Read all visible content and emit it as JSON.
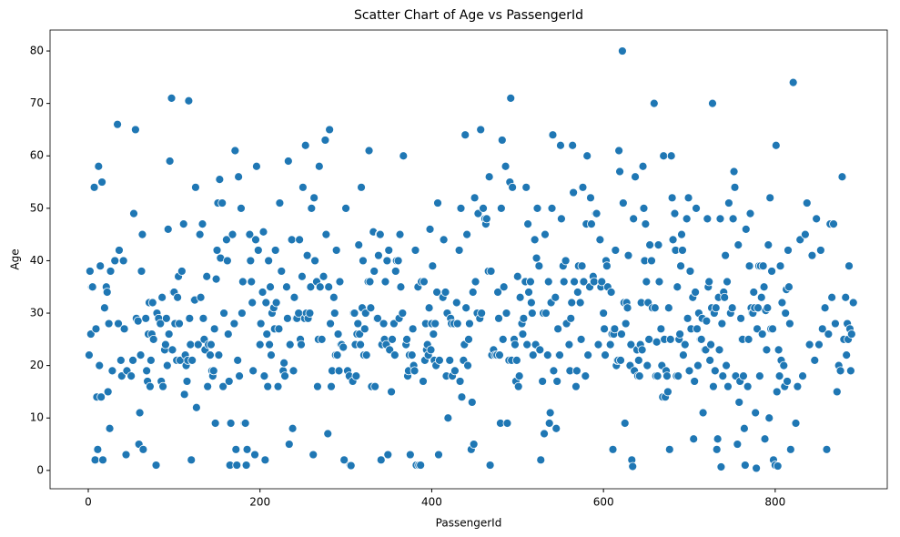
{
  "chart_data": {
    "type": "scatter",
    "title": "Scatter Chart of Age vs PassengerId",
    "xlabel": "PassengerId",
    "ylabel": "Age",
    "color": "#1f77b4",
    "x": [
      1,
      2,
      3,
      4,
      5,
      7,
      8,
      9,
      10,
      11,
      12,
      13,
      14,
      15,
      16,
      17,
      19,
      21,
      22,
      23,
      24,
      25,
      26,
      28,
      31,
      34,
      35,
      36,
      38,
      39,
      41,
      42,
      44,
      45,
      50,
      52,
      53,
      55,
      56,
      58,
      59,
      60,
      61,
      62,
      63,
      64,
      67,
      68,
      69,
      70,
      71,
      72,
      73,
      74,
      75,
      76,
      79,
      80,
      82,
      84,
      85,
      86,
      87,
      89,
      90,
      91,
      92,
      93,
      94,
      95,
      97,
      98,
      99,
      100,
      101,
      103,
      104,
      105,
      106,
      107,
      109,
      111,
      112,
      113,
      114,
      115,
      116,
      117,
      118,
      119,
      120,
      121,
      123,
      124,
      125,
      126,
      128,
      130,
      131,
      133,
      134,
      135,
      136,
      138,
      139,
      140,
      142,
      143,
      144,
      145,
      146,
      147,
      148,
      149,
      150,
      151,
      152,
      153,
      154,
      156,
      157,
      158,
      161,
      162,
      163,
      164,
      165,
      166,
      168,
      170,
      171,
      172,
      173,
      174,
      175,
      176,
      178,
      179,
      180,
      182,
      183,
      184,
      185,
      188,
      189,
      190,
      191,
      192,
      194,
      195,
      196,
      198,
      200,
      201,
      203,
      204,
      205,
      206,
      207,
      208,
      209,
      210,
      211,
      212,
      213,
      214,
      216,
      217,
      218,
      219,
      221,
      222,
      223,
      225,
      227,
      228,
      229,
      231,
      232,
      233,
      234,
      235,
      237,
      238,
      239,
      240,
      242,
      243,
      245,
      246,
      247,
      248,
      249,
      250,
      252,
      253,
      254,
      255,
      256,
      258,
      259,
      260,
      262,
      263,
      264,
      266,
      267,
      268,
      269,
      270,
      272,
      274,
      276,
      277,
      279,
      280,
      281,
      282,
      283,
      284,
      286,
      287,
      288,
      289,
      290,
      291,
      292,
      293,
      294,
      295,
      297,
      298,
      300,
      302,
      304,
      305,
      306,
      308,
      309,
      310,
      311,
      312,
      313,
      314,
      315,
      316,
      317,
      318,
      319,
      320,
      321,
      322,
      323,
      324,
      326,
      327,
      328,
      329,
      330,
      332,
      333,
      334,
      336,
      337,
      338,
      339,
      340,
      341,
      342,
      344,
      345,
      346,
      347,
      348,
      349,
      350,
      351,
      353,
      354,
      356,
      357,
      358,
      359,
      361,
      362,
      363,
      364,
      366,
      367,
      370,
      371,
      372,
      373,
      374,
      375,
      377,
      378,
      379,
      380,
      381,
      382,
      384,
      385,
      387,
      388,
      390,
      391,
      392,
      393,
      394,
      395,
      396,
      397,
      398,
      399,
      400,
      401,
      402,
      403,
      404,
      405,
      406,
      407,
      408,
      409,
      413,
      414,
      416,
      417,
      418,
      419,
      421,
      422,
      423,
      424,
      426,
      427,
      429,
      430,
      432,
      433,
      434,
      435,
      437,
      438,
      439,
      440,
      441,
      442,
      443,
      444,
      446,
      447,
      448,
      449,
      450,
      451,
      453,
      454,
      456,
      457,
      458,
      460,
      462,
      463,
      464,
      466,
      467,
      468,
      469,
      470,
      472,
      474,
      476,
      477,
      478,
      479,
      480,
      481,
      482,
      483,
      484,
      486,
      487,
      488,
      490,
      491,
      492,
      493,
      494,
      496,
      497,
      498,
      499,
      500,
      501,
      502,
      503,
      505,
      506,
      507,
      509,
      510,
      511,
      512,
      513,
      515,
      516,
      517,
      518,
      520,
      521,
      522,
      523,
      525,
      526,
      527,
      529,
      530,
      531,
      532,
      533,
      535,
      536,
      537,
      538,
      539,
      540,
      541,
      542,
      544,
      545,
      546,
      547,
      548,
      549,
      550,
      551,
      553,
      554,
      556,
      557,
      560,
      561,
      562,
      563,
      564,
      565,
      566,
      568,
      569,
      570,
      571,
      573,
      574,
      575,
      576,
      577,
      579,
      580,
      581,
      582,
      584,
      585,
      586,
      588,
      589,
      591,
      592,
      594,
      596,
      597,
      598,
      600,
      601,
      602,
      603,
      604,
      605,
      608,
      609,
      610,
      611,
      612,
      613,
      614,
      615,
      616,
      617,
      618,
      619,
      620,
      621,
      622,
      623,
      624,
      625,
      626,
      627,
      628,
      629,
      631,
      632,
      633,
      634,
      635,
      636,
      637,
      639,
      640,
      641,
      642,
      643,
      644,
      645,
      646,
      647,
      648,
      649,
      650,
      651,
      652,
      653,
      654,
      656,
      657,
      659,
      660,
      661,
      662,
      663,
      664,
      665,
      667,
      668,
      669,
      670,
      671,
      672,
      673,
      674,
      675,
      676,
      677,
      678,
      679,
      680,
      681,
      683,
      684,
      685,
      686,
      687,
      688,
      689,
      690,
      691,
      692,
      693,
      695,
      697,
      698,
      699,
      700,
      701,
      702,
      704,
      705,
      706,
      707,
      708,
      709,
      710,
      711,
      713,
      714,
      715,
      716,
      718,
      719,
      720,
      721,
      722,
      723,
      724,
      725,
      726,
      727,
      728,
      729,
      730,
      731,
      732,
      733,
      734,
      735,
      736,
      737,
      738,
      739,
      740,
      741,
      742,
      743,
      744,
      745,
      746,
      748,
      750,
      751,
      752,
      753,
      754,
      756,
      757,
      758,
      759,
      760,
      761,
      762,
      763,
      764,
      765,
      766,
      768,
      769,
      770,
      771,
      772,
      773,
      774,
      775,
      776,
      777,
      778,
      779,
      780,
      781,
      782,
      783,
      784,
      785,
      786,
      787,
      788,
      789,
      790,
      791,
      792,
      793,
      794,
      795,
      796,
      797,
      798,
      800,
      801,
      802,
      803,
      804,
      805,
      806,
      807,
      808,
      810,
      811,
      812,
      813,
      814,
      815,
      816,
      817,
      818,
      821,
      824,
      826,
      829,
      832,
      835,
      837,
      840,
      843,
      846,
      848,
      851,
      853,
      855,
      858,
      860,
      862,
      864,
      866,
      868,
      870,
      872,
      874,
      876,
      878,
      880,
      882,
      883,
      884,
      885,
      886,
      887,
      888,
      889,
      891
    ],
    "values": [
      22,
      38,
      26,
      35,
      35,
      54,
      2,
      27,
      14,
      4,
      58,
      20,
      39,
      14,
      55,
      2,
      31,
      35,
      34,
      15,
      28,
      8,
      38,
      19,
      40,
      66,
      28,
      42,
      21,
      18,
      40,
      27,
      3,
      19,
      18,
      21,
      49,
      65,
      29,
      28.5,
      5,
      11,
      22,
      38,
      45,
      4,
      29,
      19,
      17,
      26,
      32,
      16,
      21,
      26,
      32,
      25,
      1,
      30,
      29,
      28,
      17,
      33,
      16,
      23,
      24,
      29,
      20,
      46,
      26,
      59,
      71,
      23,
      34,
      34,
      28,
      21,
      33,
      37,
      28,
      21,
      38,
      47,
      14.5,
      22,
      20,
      17,
      21,
      70.5,
      29,
      24,
      2,
      21,
      32.5,
      32.5,
      54,
      12,
      24,
      45,
      33,
      47,
      29,
      25,
      23,
      37,
      16,
      24,
      22,
      24,
      19,
      18,
      19,
      27,
      9,
      36.5,
      42,
      51,
      22,
      55.5,
      40.5,
      51,
      16,
      30,
      44,
      40,
      26,
      17,
      1,
      9,
      45,
      28,
      61,
      4,
      1,
      21,
      56,
      18,
      50,
      30,
      36,
      9,
      9,
      1,
      4,
      45,
      40,
      36,
      32,
      19,
      3,
      44,
      58,
      42,
      24,
      28,
      34,
      45.5,
      18,
      2,
      32,
      26,
      16,
      40,
      24,
      35,
      22,
      30,
      31,
      27,
      42,
      32,
      16,
      27,
      51,
      38,
      19,
      20.5,
      18,
      35,
      29,
      59,
      5,
      24,
      44,
      8,
      19,
      33,
      29,
      29,
      30,
      44,
      25,
      24,
      37,
      54,
      29,
      62,
      30,
      41,
      29,
      30,
      35,
      50,
      3,
      52,
      40,
      36,
      16,
      25,
      58,
      35,
      25,
      37,
      63,
      45,
      7,
      35,
      65,
      28,
      16,
      19,
      33,
      30,
      22,
      42,
      22,
      26,
      19,
      36,
      24,
      24,
      23.5,
      2,
      50,
      19,
      18,
      1,
      0.92,
      17,
      30,
      30,
      24,
      18,
      26,
      28,
      43,
      26,
      24,
      54,
      31,
      40,
      22,
      27,
      30,
      22,
      36,
      61,
      36,
      31,
      16,
      45.5,
      38,
      16,
      29,
      29,
      41,
      45,
      45,
      2,
      24,
      28,
      25,
      36,
      24,
      40,
      3,
      42,
      23,
      15,
      25,
      28,
      22,
      38,
      40,
      40,
      29,
      45,
      35,
      30,
      60,
      24,
      25,
      18,
      19,
      22,
      3,
      22,
      27,
      20,
      19,
      42,
      1,
      35,
      1,
      1,
      36,
      17,
      36,
      21,
      28,
      23,
      24,
      22,
      31,
      46,
      23,
      28,
      39,
      26,
      21,
      28,
      20,
      34,
      51,
      3,
      21,
      33,
      44,
      34,
      18,
      30,
      10,
      21,
      29,
      28,
      18,
      28,
      19,
      32,
      28,
      42,
      17,
      50,
      14,
      21,
      24,
      64,
      31,
      45,
      20,
      25,
      28,
      4,
      13,
      34,
      5,
      52,
      36,
      30,
      49,
      29,
      65,
      30,
      50,
      48,
      47,
      48,
      38,
      56,
      1,
      38,
      22,
      23,
      22,
      22,
      34,
      29,
      22,
      9,
      50,
      63,
      25,
      35,
      58,
      30,
      9,
      21,
      55,
      71,
      21,
      54,
      25,
      24,
      17,
      21,
      37,
      16,
      18,
      33,
      28,
      26,
      29,
      36,
      54,
      24,
      47,
      34,
      36,
      32,
      30,
      22,
      44,
      24,
      40.5,
      50,
      39,
      23,
      2,
      17,
      30,
      7,
      45,
      30,
      22,
      36,
      9,
      11,
      32,
      50,
      64,
      19,
      33,
      8,
      17,
      27,
      22,
      22,
      62,
      48,
      39,
      36,
      40,
      28,
      24,
      19,
      29,
      32,
      62,
      53,
      36,
      16,
      19,
      34,
      39,
      32,
      25,
      39,
      54,
      36,
      18,
      47,
      60,
      22,
      35,
      52,
      47,
      37,
      36,
      49,
      49,
      24,
      44,
      35,
      36,
      30,
      27,
      22,
      40,
      39,
      35,
      24,
      34,
      26,
      4,
      26,
      27,
      42,
      20,
      21,
      21,
      61,
      57,
      21,
      26,
      80,
      51,
      32,
      9,
      28,
      32,
      31,
      41,
      20,
      24,
      2,
      0.75,
      48,
      19,
      56,
      23,
      18,
      21,
      18,
      24,
      32,
      23,
      58,
      50,
      40,
      47,
      36,
      20,
      32,
      25,
      43,
      40,
      31,
      70,
      31,
      18,
      24.5,
      18,
      43,
      36,
      27,
      20,
      14,
      60,
      25,
      14,
      19,
      18,
      15,
      31,
      4,
      25,
      60,
      52,
      44,
      49,
      42,
      18,
      35,
      18,
      25,
      26,
      39,
      45,
      42,
      22,
      24,
      48,
      29,
      52,
      19,
      38,
      27,
      33,
      6,
      17,
      34,
      50,
      27,
      20,
      30,
      25,
      25,
      29,
      11,
      23,
      23,
      28.5,
      48,
      35,
      36,
      21,
      24,
      31,
      70,
      16,
      30,
      19,
      31,
      4,
      6,
      33,
      23,
      48,
      0.67,
      28,
      18,
      34,
      33,
      41,
      20,
      36,
      16,
      51,
      30,
      31,
      48,
      57,
      54,
      18,
      5,
      43,
      13,
      17,
      29,
      25,
      25,
      18,
      8,
      1,
      46,
      16,
      25,
      39,
      49,
      31,
      30,
      30,
      34,
      31,
      11,
      0.42,
      27,
      31,
      39,
      18,
      39,
      33,
      26,
      39,
      35,
      6,
      30.5,
      23,
      31,
      43,
      10,
      52,
      27,
      38,
      27,
      2,
      1,
      62,
      15,
      0.83,
      23,
      18,
      39,
      21,
      32,
      20,
      16,
      30,
      34.5,
      17,
      42,
      35,
      28,
      4,
      74,
      9,
      16,
      44,
      18,
      45,
      51,
      24,
      41,
      21,
      48,
      24,
      42,
      27,
      31,
      4,
      26,
      47,
      33,
      47,
      28,
      15,
      20,
      19,
      56,
      25,
      33,
      22,
      28,
      25,
      39,
      27,
      19,
      26,
      32
    ],
    "xlim": [
      -44.5,
      930.5
    ],
    "ylim": [
      -3.5,
      84
    ],
    "xticks": [
      0,
      200,
      400,
      600,
      800
    ],
    "yticks": [
      0,
      10,
      20,
      30,
      40,
      50,
      60,
      70,
      80
    ]
  }
}
